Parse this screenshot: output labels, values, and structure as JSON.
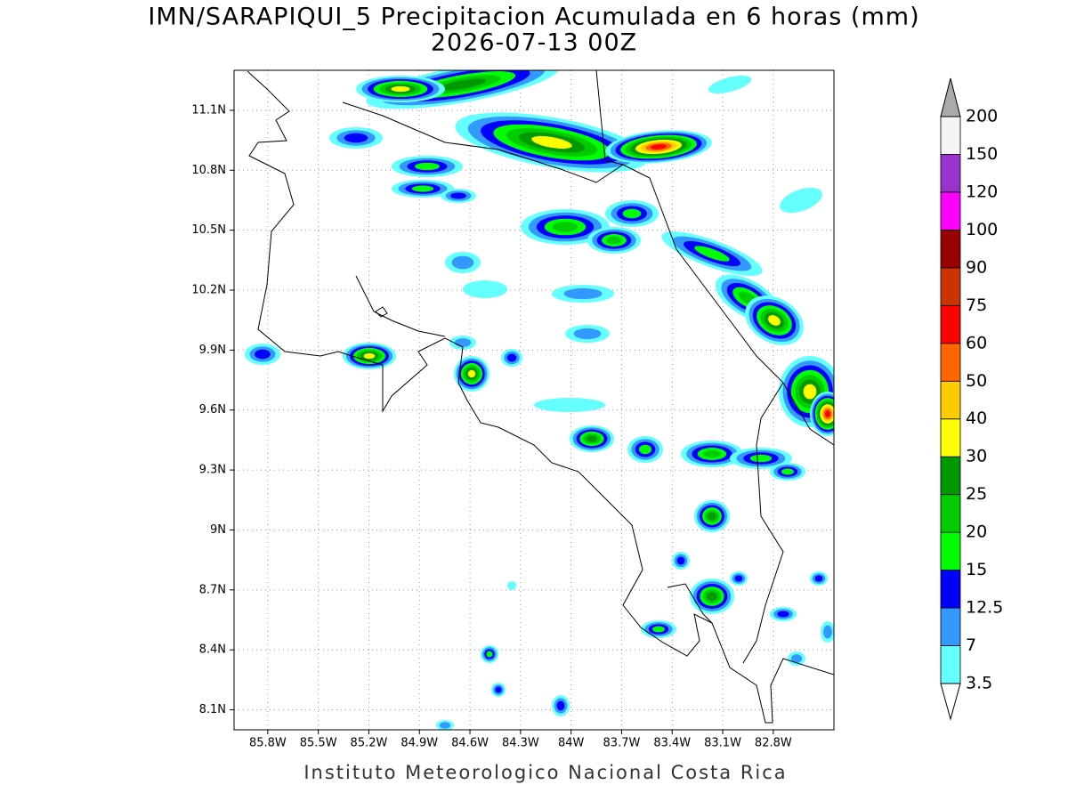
{
  "map": {
    "title": "IMN/SARAPIQUI_5 Precipitacion Acumulada en 6 horas (mm)",
    "subtitle": "2026-07-13 00Z",
    "xlim": [
      -86.0,
      -82.44
    ],
    "ylim": [
      8.0,
      11.3
    ],
    "xticks": [
      {
        "value": -85.8,
        "label": "85.8W"
      },
      {
        "value": -85.5,
        "label": "85.5W"
      },
      {
        "value": -85.2,
        "label": "85.2W"
      },
      {
        "value": -84.9,
        "label": "84.9W"
      },
      {
        "value": -84.6,
        "label": "84.6W"
      },
      {
        "value": -84.3,
        "label": "84.3W"
      },
      {
        "value": -84.0,
        "label": "84W"
      },
      {
        "value": -83.7,
        "label": "83.7W"
      },
      {
        "value": -83.4,
        "label": "83.4W"
      },
      {
        "value": -83.1,
        "label": "83.1W"
      },
      {
        "value": -82.8,
        "label": "82.8W"
      }
    ],
    "yticks": [
      {
        "value": 11.1,
        "label": "11.1N"
      },
      {
        "value": 10.8,
        "label": "10.8N"
      },
      {
        "value": 10.5,
        "label": "10.5N"
      },
      {
        "value": 10.2,
        "label": "10.2N"
      },
      {
        "value": 9.9,
        "label": "9.9N"
      },
      {
        "value": 9.6,
        "label": "9.6N"
      },
      {
        "value": 9.3,
        "label": "9.3N"
      },
      {
        "value": 9.0,
        "label": "9N"
      },
      {
        "value": 8.7,
        "label": "8.7N"
      },
      {
        "value": 8.4,
        "label": "8.4N"
      },
      {
        "value": 8.1,
        "label": "8.1N"
      }
    ],
    "grid": true,
    "colorbar": {
      "levels": [
        3.5,
        7,
        12.5,
        15,
        20,
        25,
        30,
        40,
        50,
        60,
        75,
        90,
        100,
        120,
        150,
        200
      ],
      "colors": [
        "#66ffff",
        "#3399ff",
        "#0000ff",
        "#00ff00",
        "#00cc00",
        "#009900",
        "#ffff00",
        "#ffcc00",
        "#ff6600",
        "#ff0000",
        "#cc3300",
        "#990000",
        "#ff00ff",
        "#9933cc",
        "#f5f5f5"
      ],
      "under_color": "#ffffff",
      "over_color": "#aaaaaa"
    },
    "footer": "Instituto Meteorologico Nacional Costa Rica"
  }
}
